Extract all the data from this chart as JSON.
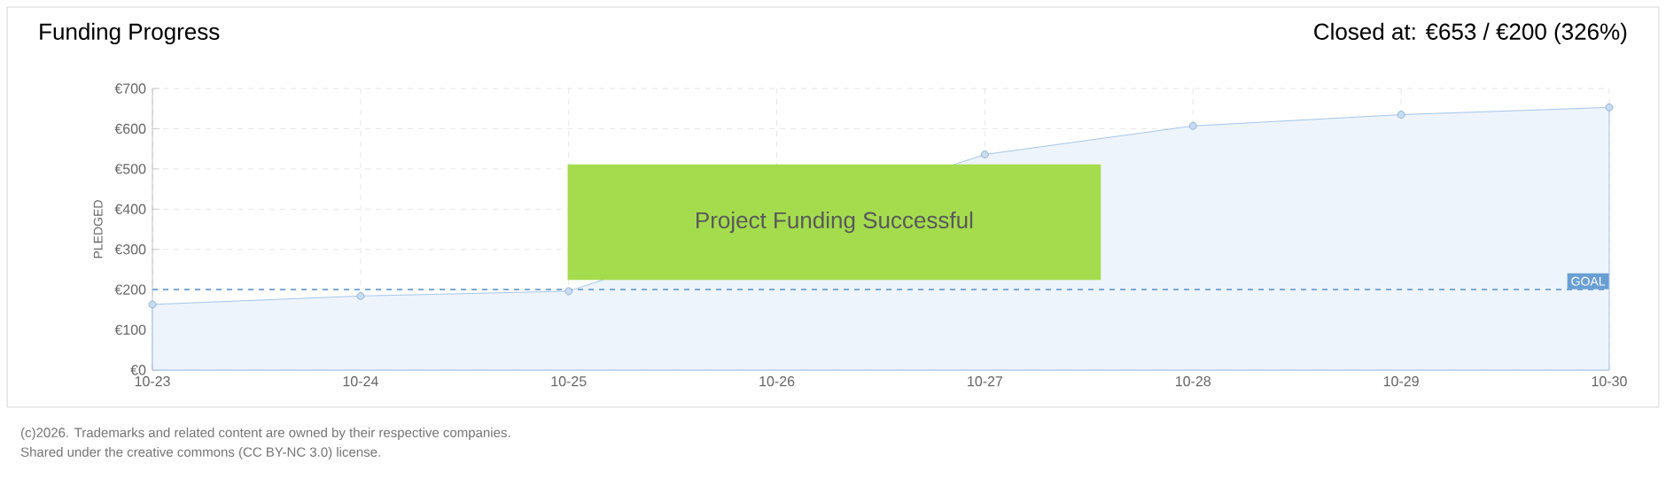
{
  "chart_data": {
    "type": "area",
    "title": "Funding Progress",
    "subtitle": "Closed at: €653 / €200 (326%)",
    "ylabel": "PLEDGED",
    "categories": [
      "10-23",
      "10-24",
      "10-25",
      "10-26",
      "10-27",
      "10-28",
      "10-29",
      "10-30"
    ],
    "series": [
      {
        "color": "#8fb8e6",
        "values": [
          163,
          184,
          196,
          null,
          536,
          607,
          635,
          653
        ]
      }
    ],
    "ylim": [
      0,
      700
    ],
    "yticks": [
      {
        "value": 0,
        "label": "€0"
      },
      {
        "value": 100,
        "label": "€100"
      },
      {
        "value": 200,
        "label": "€200"
      },
      {
        "value": 300,
        "label": "€300"
      },
      {
        "value": 400,
        "label": "€400"
      },
      {
        "value": 500,
        "label": "€500"
      },
      {
        "value": 600,
        "label": "€600"
      },
      {
        "value": 700,
        "label": "€700"
      }
    ],
    "grid": true,
    "marker": "circle",
    "ref_lines": [
      {
        "axis": "y",
        "value": 200,
        "label": "GOAL",
        "color": "#6a9fd4",
        "line_style": "dashed"
      }
    ],
    "annotations": [
      "Project Funding Successful",
      "(c)2026. Trademarks and related content are owned by their respective companies.",
      "Shared under the creative commons (CC BY-NC 3.0) license."
    ]
  }
}
